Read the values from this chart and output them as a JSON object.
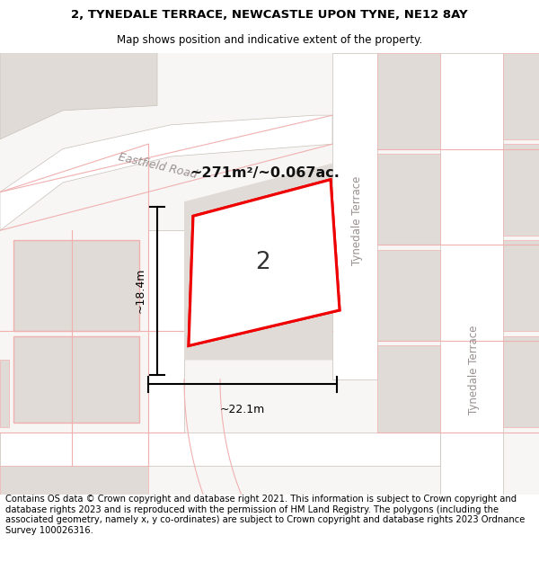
{
  "title_line1": "2, TYNEDALE TERRACE, NEWCASTLE UPON TYNE, NE12 8AY",
  "title_line2": "Map shows position and indicative extent of the property.",
  "footer_text": "Contains OS data © Crown copyright and database right 2021. This information is subject to Crown copyright and database rights 2023 and is reproduced with the permission of HM Land Registry. The polygons (including the associated geometry, namely x, y co-ordinates) are subject to Crown copyright and database rights 2023 Ordnance Survey 100026316.",
  "area_label": "~271m²/~0.067ac.",
  "plot_number": "2",
  "width_label": "~22.1m",
  "height_label": "~18.4m",
  "map_bg": "#f8f6f4",
  "road_color": "#ffffff",
  "block_color": "#e0dbd6",
  "plot_fill": "#f8f6f4",
  "plot_outline": "#ee0000",
  "grid_line_color": "#f0b0b0",
  "road_edge_color": "#c8c0b8",
  "label_color": "#999090",
  "title_fontsize": 9.5,
  "subtitle_fontsize": 8.5,
  "footer_fontsize": 7.2
}
